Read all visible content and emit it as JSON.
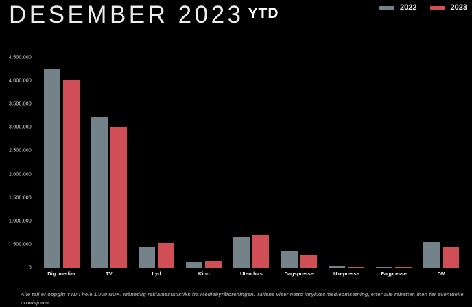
{
  "header": {
    "title": "DESEMBER 2023",
    "title_suffix": "YTD"
  },
  "legend": [
    {
      "label": "2022",
      "color": "#74828a"
    },
    {
      "label": "2023",
      "color": "#d04f57"
    }
  ],
  "colors": {
    "background": "#000000",
    "series_2022": "#74828a",
    "series_2023": "#d04f57"
  },
  "chart_data": {
    "type": "bar",
    "title": "DESEMBER 2023 YTD",
    "categories": [
      "Dig. medier",
      "TV",
      "Lyd",
      "Kino",
      "Utendørs",
      "Dagspresse",
      "Ukepresse",
      "Fagpresse",
      "DM"
    ],
    "series": [
      {
        "name": "2022",
        "color": "#74828a",
        "values": [
          4250000,
          3220000,
          460000,
          130000,
          660000,
          355000,
          45000,
          30000,
          560000
        ]
      },
      {
        "name": "2023",
        "color": "#d04f57",
        "values": [
          4020000,
          3000000,
          530000,
          150000,
          710000,
          285000,
          25000,
          20000,
          460000
        ]
      }
    ],
    "ylim": [
      0,
      4500000
    ],
    "ytick_step": 500000,
    "ytick_labels": [
      "0",
      "500.000",
      "1.000.000",
      "1.500.000",
      "2.000.000",
      "2.500.000",
      "3.000.000",
      "3.500.000",
      "4.000.000",
      "4.500.000"
    ],
    "grid": false,
    "legend_position": "top-right",
    "xlabel": "",
    "ylabel": ""
  },
  "footer": {
    "note": "Alle tall er oppgitt YTD i hele 1.000 NOK. Månedlig reklamestatistikk fra Mediebyråforeningen. Tallene viser netto inrykket medieomsetning, etter alle rabatter, men før eventuelle provisjoner."
  }
}
